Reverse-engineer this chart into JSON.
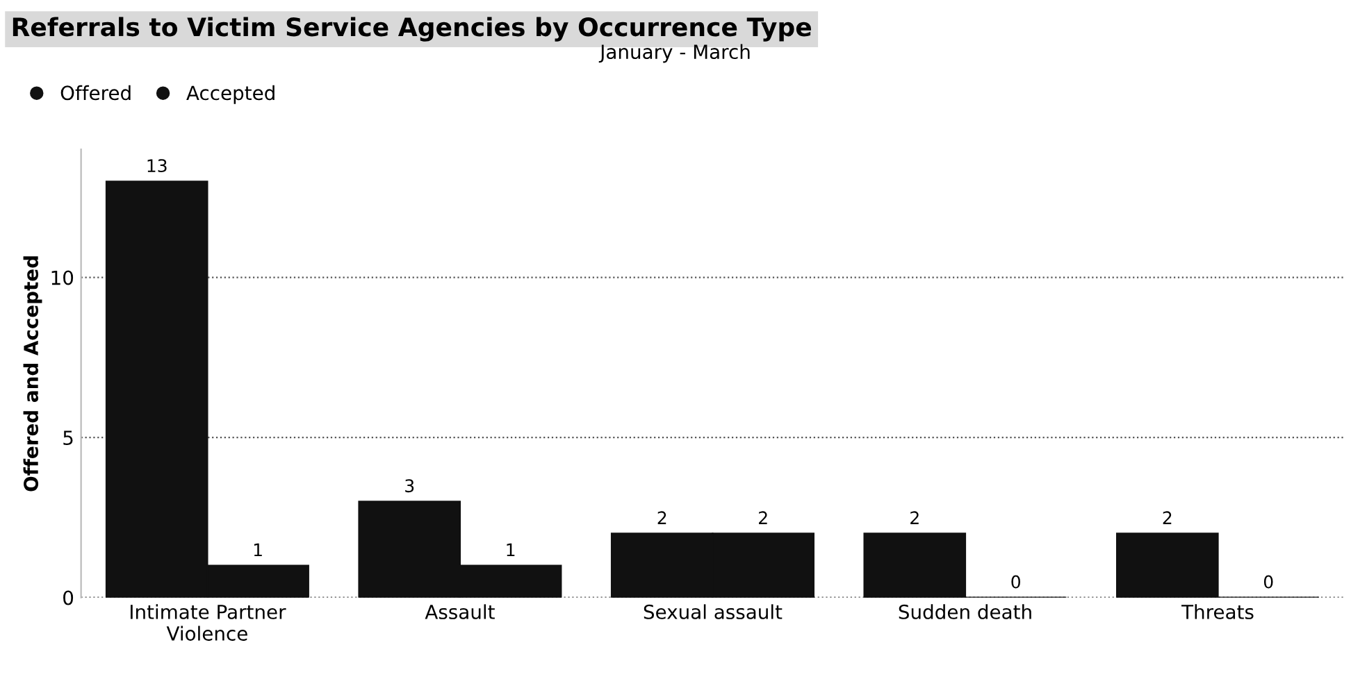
{
  "chart_data": {
    "type": "bar",
    "title": "Referrals to Victim Service Agencies by Occurrence Type",
    "subtitle": "January - March",
    "ylabel": "Offered and Accepted",
    "categories": [
      "Intimate Partner\nViolence",
      "Assault",
      "Sexual assault",
      "Sudden death",
      "Threats"
    ],
    "series": [
      {
        "name": "Offered",
        "color": "#111111",
        "values": [
          13,
          3,
          2,
          2,
          2
        ]
      },
      {
        "name": "Accepted",
        "color": "#111111",
        "values": [
          1,
          1,
          2,
          0,
          0
        ]
      }
    ],
    "ylim": [
      0,
      14
    ],
    "yticks": [
      0,
      5,
      10
    ],
    "grid": "y",
    "legend": "top left",
    "data_labels": true
  }
}
